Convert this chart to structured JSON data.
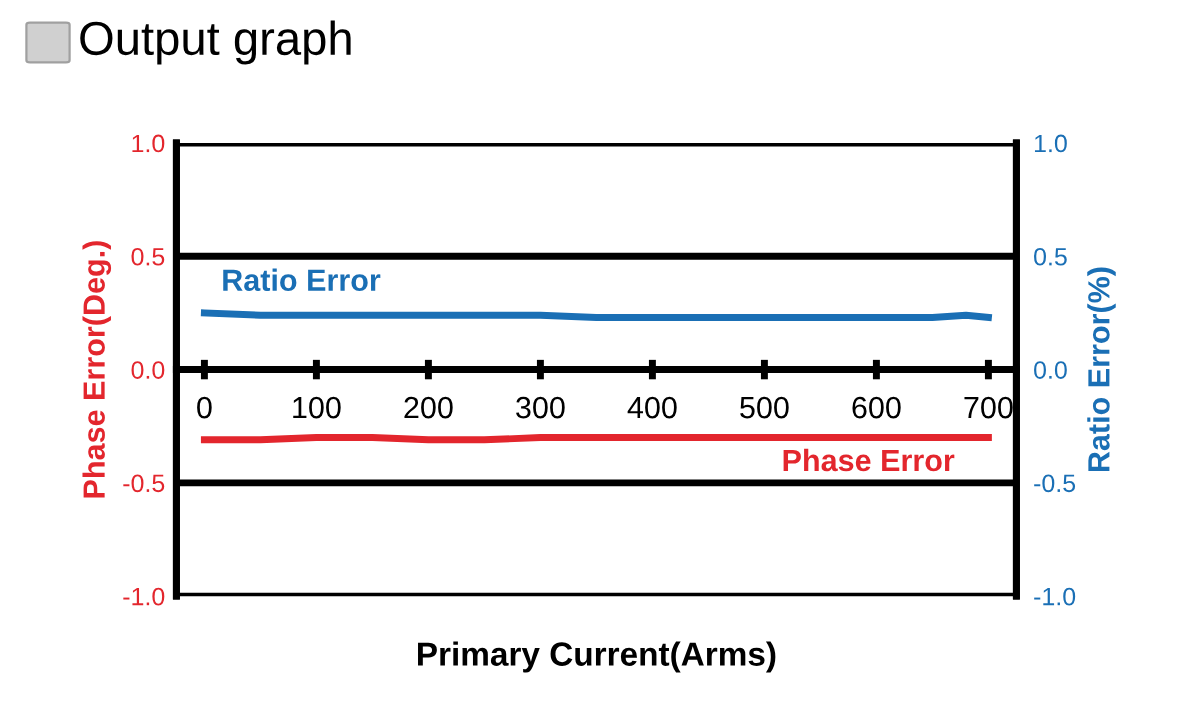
{
  "chart_data": {
    "type": "line",
    "title": "Output graph",
    "xlabel": "Primary Current(Arms)",
    "ylabel": "Phase Error(Deg.)",
    "y2label": "Ratio Error(%)",
    "x": [
      0,
      50,
      100,
      150,
      200,
      250,
      300,
      350,
      400,
      450,
      500,
      550,
      600,
      650,
      680,
      700
    ],
    "series": [
      {
        "name": "Ratio Error",
        "color": "#1a6fb5",
        "axis": "y2",
        "values": [
          0.25,
          0.24,
          0.24,
          0.24,
          0.24,
          0.24,
          0.24,
          0.23,
          0.23,
          0.23,
          0.23,
          0.23,
          0.23,
          0.23,
          0.24,
          0.23
        ]
      },
      {
        "name": "Phase Error",
        "color": "#e3262d",
        "values": [
          -0.31,
          -0.31,
          -0.3,
          -0.3,
          -0.31,
          -0.31,
          -0.3,
          -0.3,
          -0.3,
          -0.3,
          -0.3,
          -0.3,
          -0.3,
          -0.3,
          -0.3,
          -0.3
        ]
      }
    ],
    "xlim": [
      -25,
      725
    ],
    "xticks": [
      0,
      100,
      200,
      300,
      400,
      500,
      600,
      700
    ],
    "ylim": [
      -1.0,
      1.0
    ],
    "yticks": [
      {
        "value": -1.0,
        "label": "-1.0"
      },
      {
        "value": -0.5,
        "label": "-0.5"
      },
      {
        "value": 0,
        "label": "0.0"
      },
      {
        "value": 0.5,
        "label": "0.5"
      },
      {
        "value": 1.0,
        "label": "1.0"
      }
    ],
    "y2lim": [
      -1.0,
      1.0
    ],
    "y2ticks": [
      {
        "value": -1.0,
        "label": "-1.0"
      },
      {
        "value": -0.5,
        "label": "-0.5"
      },
      {
        "value": 0,
        "label": "0.0"
      },
      {
        "value": 0.5,
        "label": "0.5"
      },
      {
        "value": 1.0,
        "label": "1.0"
      }
    ],
    "grid": "y",
    "legend": false,
    "marker": "none",
    "line_style": "solid"
  }
}
